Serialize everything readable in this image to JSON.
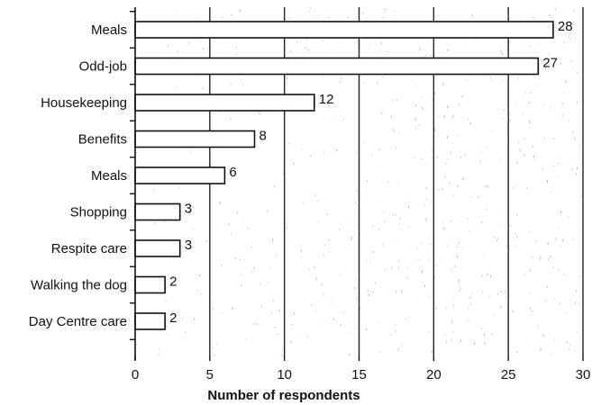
{
  "chart_data": {
    "type": "bar",
    "orientation": "horizontal",
    "categories": [
      "Meals",
      "Odd-job",
      "Housekeeping",
      "Benefits",
      "Meals",
      "Shopping",
      "Respite care",
      "Walking the dog",
      "Day Centre care"
    ],
    "values": [
      28,
      27,
      12,
      8,
      6,
      3,
      3,
      2,
      2
    ],
    "value_labels": [
      "28",
      "27",
      "12",
      "8",
      "6",
      "3",
      "3",
      "2",
      "2"
    ],
    "xlim": [
      0,
      30
    ],
    "xticks": [
      "0",
      "5",
      "10",
      "15",
      "20",
      "25",
      "30"
    ],
    "xlabel": "Number of respondents",
    "grid": true,
    "bar_color": "#ffffff",
    "edge_color": "#111111"
  }
}
